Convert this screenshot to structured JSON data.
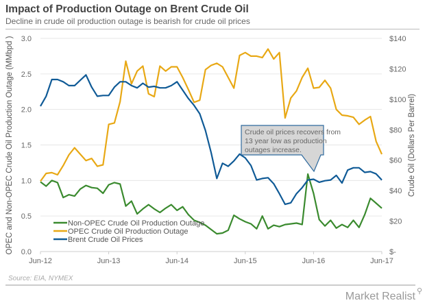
{
  "header": {
    "title": "Impact of Production Outage on Brent Crude Oil",
    "subtitle": "Decline in crude oil production outage is bearish for crude oil prices"
  },
  "footer": {
    "source": "Source: EIA, NYMEX",
    "brand": "Market Realist",
    "brand_icon": "magnifier-chart-icon"
  },
  "colors": {
    "non_opec": "#3a8a2e",
    "opec": "#e8a814",
    "brent": "#0f5a96",
    "grid": "#e6e6e6",
    "callout_fill": "#d6d6d6",
    "callout_border": "#2f6a9e"
  },
  "chart_data": {
    "type": "line",
    "title": "Impact of Production Outage on Brent Crude Oil",
    "subtitle": "Decline in crude oil production outage is bearish for crude oil prices",
    "xlabel": "",
    "ylabel": "OPEC and Non-OPEC Crude Oil Production Outage (MMbpd )",
    "ylabel_right": "Crude Oil (Dollars Per Barrel)",
    "x_start": "Jun-12",
    "x_end": "Jun-17",
    "x_frequency": "monthly",
    "x_ticks": [
      "Jun-12",
      "Jun-13",
      "Jun-14",
      "Jun-15",
      "Jun-16",
      "Jun-17"
    ],
    "ylim": [
      0,
      3.0
    ],
    "y_ticks": [
      "0.0",
      "0.5",
      "1.0",
      "1.5",
      "2.0",
      "2.5",
      "3.0"
    ],
    "ylim_right": [
      0,
      140
    ],
    "y_ticks_right": [
      "$-",
      "$20",
      "$40",
      "$60",
      "$80",
      "$100",
      "$120",
      "$140"
    ],
    "grid": true,
    "legend_position": "bottom-left",
    "series": [
      {
        "name": "Non-OPEC Crude Oil Production Outage",
        "axis": "left",
        "values": [
          0.98,
          0.92,
          1.0,
          0.97,
          0.76,
          0.8,
          0.78,
          0.88,
          0.93,
          0.9,
          0.89,
          0.82,
          0.94,
          0.97,
          0.95,
          0.64,
          0.71,
          0.53,
          0.6,
          0.66,
          0.6,
          0.55,
          0.61,
          0.66,
          0.58,
          0.63,
          0.52,
          0.44,
          0.41,
          0.37,
          0.31,
          0.25,
          0.26,
          0.3,
          0.51,
          0.46,
          0.42,
          0.39,
          0.32,
          0.5,
          0.32,
          0.37,
          0.35,
          0.38,
          0.39,
          0.4,
          0.38,
          1.09,
          0.82,
          0.45,
          0.36,
          0.44,
          0.33,
          0.38,
          0.34,
          0.44,
          0.34,
          0.52,
          0.75,
          0.68,
          0.61
        ]
      },
      {
        "name": "OPEC Crude Oil Production Outage",
        "axis": "left",
        "values": [
          0.99,
          1.1,
          1.11,
          1.08,
          1.21,
          1.36,
          1.46,
          1.37,
          1.28,
          1.31,
          1.2,
          1.22,
          1.79,
          1.81,
          2.11,
          2.68,
          2.36,
          2.54,
          2.61,
          2.22,
          2.18,
          2.61,
          2.54,
          2.6,
          2.6,
          2.45,
          2.28,
          2.1,
          2.13,
          2.56,
          2.62,
          2.65,
          2.6,
          2.45,
          2.3,
          2.76,
          2.8,
          2.75,
          2.75,
          2.73,
          2.85,
          2.71,
          2.8,
          1.88,
          2.16,
          2.26,
          2.45,
          2.58,
          2.3,
          2.31,
          2.41,
          2.3,
          2.0,
          1.92,
          1.91,
          1.89,
          1.79,
          1.85,
          1.9,
          1.55,
          1.37
        ]
      },
      {
        "name": "Brent Crude Oil Prices",
        "axis": "right",
        "values": [
          95.5,
          102,
          113,
          113,
          111.5,
          109,
          109,
          112.5,
          116,
          108,
          102,
          102.5,
          102.5,
          108,
          111.5,
          111.5,
          109,
          107.5,
          110.5,
          108,
          108.5,
          107.5,
          107.5,
          109,
          111.5,
          106,
          100.5,
          96,
          90.5,
          79.5,
          65,
          48,
          58,
          56,
          59.5,
          64,
          61.5,
          56.5,
          47,
          48,
          48.5,
          44.5,
          38,
          31,
          32,
          38,
          42,
          47,
          47.5,
          45.5,
          46.5,
          47,
          50,
          45,
          53.5,
          55,
          55,
          52,
          52.5,
          51,
          47
        ]
      }
    ],
    "annotations": [
      {
        "text_lines": [
          "Crude oil prices recovers from",
          "13 year low as production",
          "outages increase."
        ],
        "points_to": "Jun-16"
      }
    ]
  }
}
